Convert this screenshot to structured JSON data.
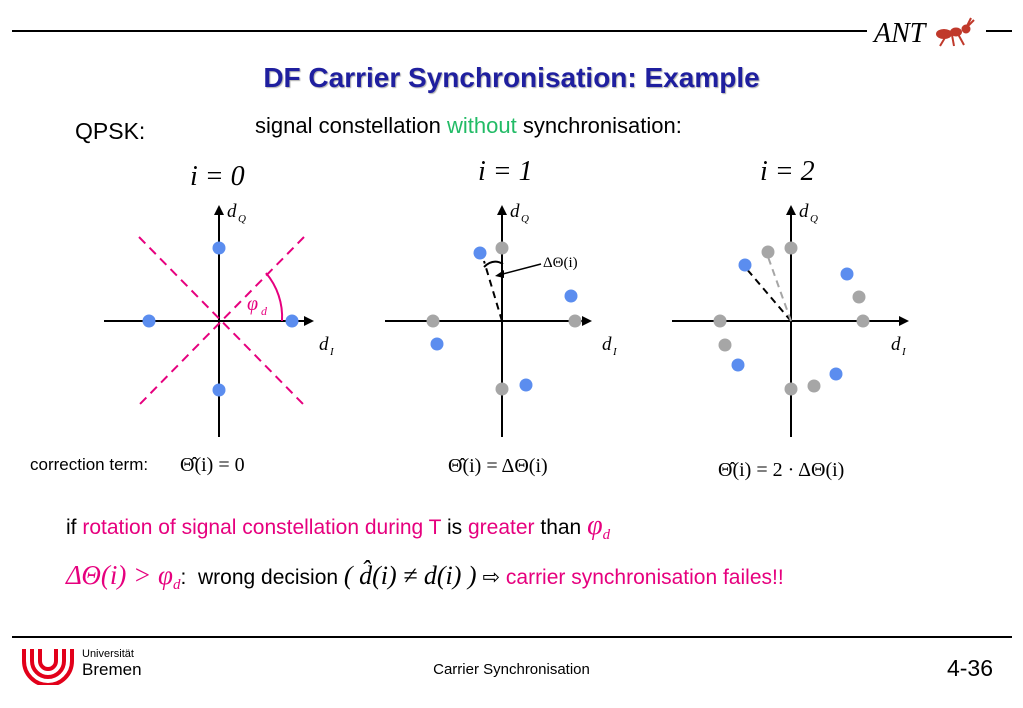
{
  "header": {
    "title": "DF Carrier Synchronisation: Example",
    "logo_text": "ANT"
  },
  "labels": {
    "qpsk": "QPSK:",
    "subtitle_pre": "signal constellation ",
    "subtitle_highlight": "without",
    "subtitle_post": " synchronisation:"
  },
  "diagrams": [
    {
      "index_label": "i = 0",
      "axis_q": "d",
      "axis_q_sub": "Q",
      "axis_i": "d",
      "axis_i_sub": "I",
      "angle_label": "φ",
      "angle_sub": "d"
    },
    {
      "index_label": "i = 1",
      "axis_q": "d",
      "axis_q_sub": "Q",
      "axis_i": "d",
      "axis_i_sub": "I",
      "delta_label": "ΔΘ(i)"
    },
    {
      "index_label": "i = 2",
      "axis_q": "d",
      "axis_q_sub": "Q",
      "axis_i": "d",
      "axis_i_sub": "I"
    }
  ],
  "correction": {
    "label": "correction term:",
    "f0": "Θ̂(i) = 0",
    "f1": "Θ̂(i) = ΔΘ(i)",
    "f2": "Θ̂(i) = 2 · ΔΘ(i)"
  },
  "statement": {
    "if": "if ",
    "rotation": "rotation of signal constellation during T",
    "is": " is ",
    "greater": "greater",
    "than": " than ",
    "phi": "φ",
    "phi_sub": "d"
  },
  "conclusion": {
    "cond": "ΔΘ(i) > φ",
    "cond_sub": "d",
    "colon": ":",
    "wrong": "wrong decision ",
    "formula": "( d̂(i) ≠ d(i) )",
    "arrow": "⇨",
    "result": "carrier synchronisation failes!!"
  },
  "footer": {
    "uni_line1": "Universität",
    "uni_line2": "Bremen",
    "center": "Carrier Synchronisation",
    "page": "4-36"
  },
  "colors": {
    "title": "#1f1f9f",
    "blue_point": "#5b8def",
    "gray_point": "#a6a6a6",
    "magenta": "#e6007e",
    "green": "#22bb66",
    "uni_red": "#e2001a"
  }
}
